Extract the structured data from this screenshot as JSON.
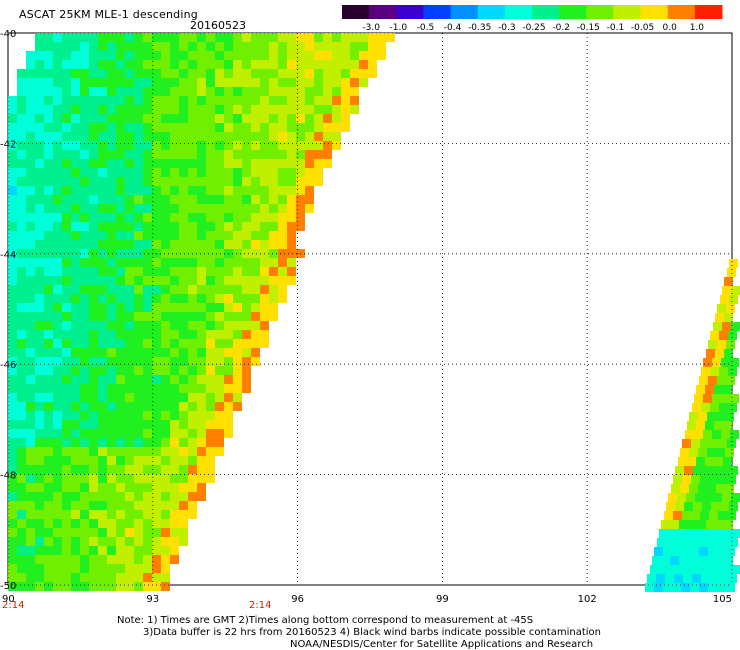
{
  "header": {
    "title": "ASCAT 25KM MLE-1 descending",
    "date": "20160523"
  },
  "colorbar": {
    "tick_labels": [
      "-3.0",
      "-1.0",
      "-0.5",
      "-0.4",
      "-0.35",
      "-0.3",
      "-0.25",
      "-0.2",
      "-0.15",
      "-0.1",
      "-0.05",
      "0.0",
      "1.0"
    ],
    "colors": [
      "#2a0030",
      "#5a0080",
      "#3a00d0",
      "#0040ff",
      "#0090ff",
      "#00d8ff",
      "#00ffd8",
      "#00f090",
      "#20f020",
      "#70f000",
      "#c0f000",
      "#ffe000",
      "#ff8000",
      "#ff2000"
    ]
  },
  "axes": {
    "x_ticks": [
      "90",
      "93",
      "96",
      "99",
      "102",
      "105"
    ],
    "y_ticks": [
      "-40",
      "-42",
      "-44",
      "-46",
      "-48",
      "-50"
    ],
    "x_range": [
      90,
      105
    ],
    "y_range": [
      -50,
      -40
    ]
  },
  "times": [
    "2:14",
    "2:14"
  ],
  "notes": {
    "line1": "Note: 1) Times are GMT 2)Times along bottom correspond to measurement at -45S",
    "line2": "3)Data buffer is 22 hrs from 20160523 4) Black wind barbs indicate possible contamination",
    "line3": "NOAA/NESDIS/Center for Satellite Applications and Research"
  }
}
